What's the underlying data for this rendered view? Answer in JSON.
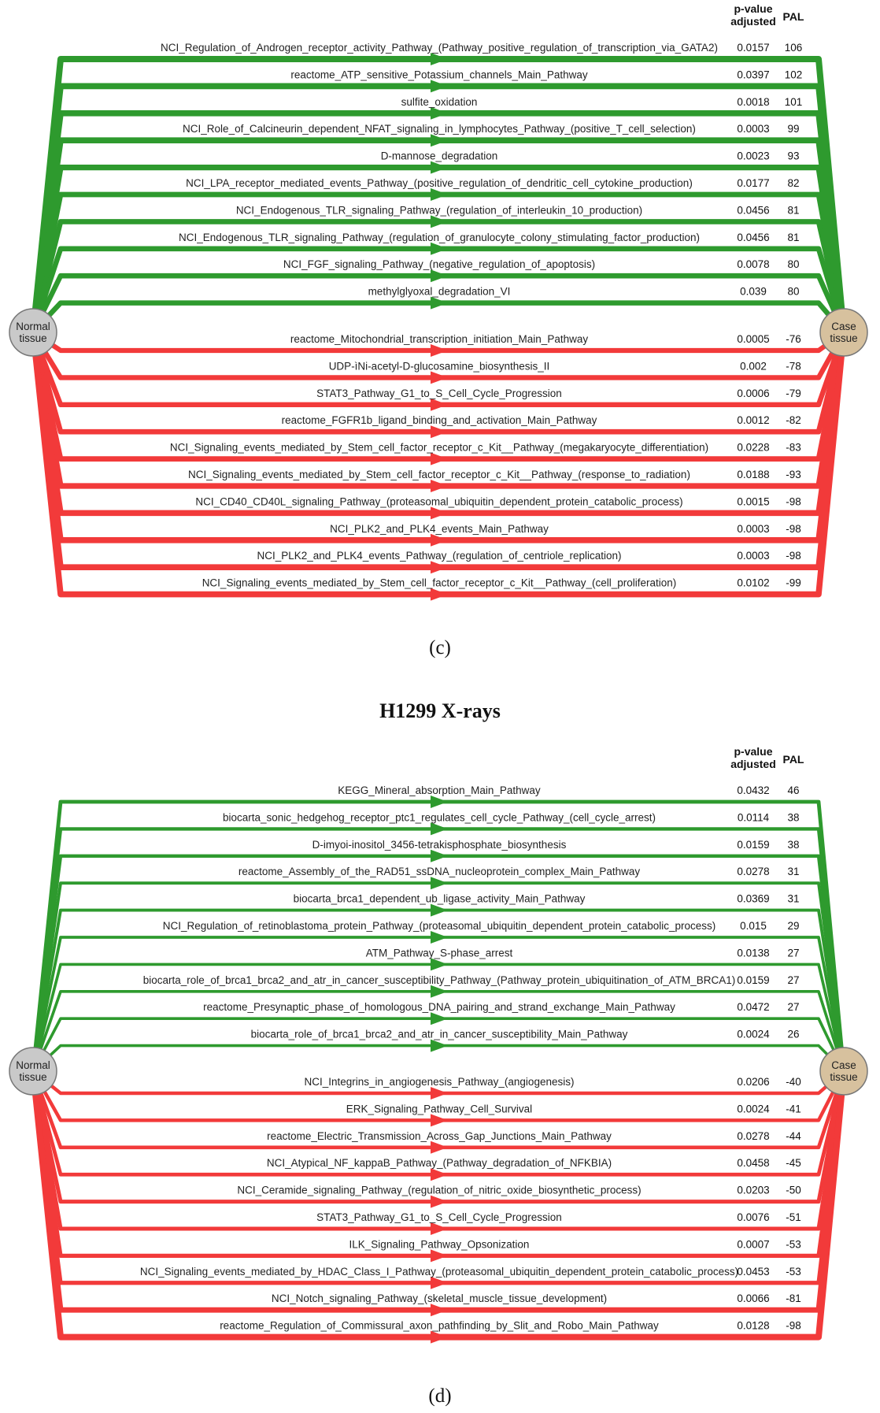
{
  "colors": {
    "up": "#2e9a2e",
    "down": "#f23a3a",
    "normal_node": "#c9c9c9",
    "case_node": "#d7c19e"
  },
  "title_d": "H1299 X-rays",
  "panels": [
    {
      "caption": "(c)",
      "header_pvalue_1": "p-value",
      "header_pvalue_2": "adjusted",
      "header_pal": "PAL",
      "node_left_1": "Normal",
      "node_left_2": "tissue",
      "node_right_1": "Case",
      "node_right_2": "tissue",
      "up_rows": [
        {
          "label": "NCI_Regulation_of_Androgen_receptor_activity_Pathway_(Pathway_positive_regulation_of_transcription_via_GATA2)",
          "pvalue": "0.0157",
          "pal": "106"
        },
        {
          "label": "reactome_ATP_sensitive_Potassium_channels_Main_Pathway",
          "pvalue": "0.0397",
          "pal": "102"
        },
        {
          "label": "sulfite_oxidation",
          "pvalue": "0.0018",
          "pal": "101"
        },
        {
          "label": "NCI_Role_of_Calcineurin_dependent_NFAT_signaling_in_lymphocytes_Pathway_(positive_T_cell_selection)",
          "pvalue": "0.0003",
          "pal": "99"
        },
        {
          "label": "D-mannose_degradation",
          "pvalue": "0.0023",
          "pal": "93"
        },
        {
          "label": "NCI_LPA_receptor_mediated_events_Pathway_(positive_regulation_of_dendritic_cell_cytokine_production)",
          "pvalue": "0.0177",
          "pal": "82"
        },
        {
          "label": "NCI_Endogenous_TLR_signaling_Pathway_(regulation_of_interleukin_10_production)",
          "pvalue": "0.0456",
          "pal": "81"
        },
        {
          "label": "NCI_Endogenous_TLR_signaling_Pathway_(regulation_of_granulocyte_colony_stimulating_factor_production)",
          "pvalue": "0.0456",
          "pal": "81"
        },
        {
          "label": "NCI_FGF_signaling_Pathway_(negative_regulation_of_apoptosis)",
          "pvalue": "0.0078",
          "pal": "80"
        },
        {
          "label": "methylglyoxal_degradation_VI",
          "pvalue": "0.039",
          "pal": "80"
        }
      ],
      "down_rows": [
        {
          "label": "reactome_Mitochondrial_transcription_initiation_Main_Pathway",
          "pvalue": "0.0005",
          "pal": "-76"
        },
        {
          "label": "UDP-ìNi-acetyl-D-glucosamine_biosynthesis_II",
          "pvalue": "0.002",
          "pal": "-78"
        },
        {
          "label": "STAT3_Pathway_G1_to_S_Cell_Cycle_Progression",
          "pvalue": "0.0006",
          "pal": "-79"
        },
        {
          "label": "reactome_FGFR1b_ligand_binding_and_activation_Main_Pathway",
          "pvalue": "0.0012",
          "pal": "-82"
        },
        {
          "label": "NCI_Signaling_events_mediated_by_Stem_cell_factor_receptor_c_Kit__Pathway_(megakaryocyte_differentiation)",
          "pvalue": "0.0228",
          "pal": "-83"
        },
        {
          "label": "NCI_Signaling_events_mediated_by_Stem_cell_factor_receptor_c_Kit__Pathway_(response_to_radiation)",
          "pvalue": "0.0188",
          "pal": "-93"
        },
        {
          "label": "NCI_CD40_CD40L_signaling_Pathway_(proteasomal_ubiquitin_dependent_protein_catabolic_process)",
          "pvalue": "0.0015",
          "pal": "-98"
        },
        {
          "label": "NCI_PLK2_and_PLK4_events_Main_Pathway",
          "pvalue": "0.0003",
          "pal": "-98"
        },
        {
          "label": "NCI_PLK2_and_PLK4_events_Pathway_(regulation_of_centriole_replication)",
          "pvalue": "0.0003",
          "pal": "-98"
        },
        {
          "label": "NCI_Signaling_events_mediated_by_Stem_cell_factor_receptor_c_Kit__Pathway_(cell_proliferation)",
          "pvalue": "0.0102",
          "pal": "-99"
        }
      ]
    },
    {
      "caption": "(d)",
      "header_pvalue_1": "p-value",
      "header_pvalue_2": "adjusted",
      "header_pal": "PAL",
      "node_left_1": "Normal",
      "node_left_2": "tissue",
      "node_right_1": "Case",
      "node_right_2": "tissue",
      "up_rows": [
        {
          "label": "KEGG_Mineral_absorption_Main_Pathway",
          "pvalue": "0.0432",
          "pal": "46"
        },
        {
          "label": "biocarta_sonic_hedgehog_receptor_ptc1_regulates_cell_cycle_Pathway_(cell_cycle_arrest)",
          "pvalue": "0.0114",
          "pal": "38"
        },
        {
          "label": "D-imyoi-inositol_3456-tetrakisphosphate_biosynthesis",
          "pvalue": "0.0159",
          "pal": "38"
        },
        {
          "label": "reactome_Assembly_of_the_RAD51_ssDNA_nucleoprotein_complex_Main_Pathway",
          "pvalue": "0.0278",
          "pal": "31"
        },
        {
          "label": "biocarta_brca1_dependent_ub_ligase_activity_Main_Pathway",
          "pvalue": "0.0369",
          "pal": "31"
        },
        {
          "label": "NCI_Regulation_of_retinoblastoma_protein_Pathway_(proteasomal_ubiquitin_dependent_protein_catabolic_process)",
          "pvalue": "0.015",
          "pal": "29"
        },
        {
          "label": "ATM_Pathway_S-phase_arrest",
          "pvalue": "0.0138",
          "pal": "27"
        },
        {
          "label": "biocarta_role_of_brca1_brca2_and_atr_in_cancer_susceptibility_Pathway_(Pathway_protein_ubiquitination_of_ATM_BRCA1)",
          "pvalue": "0.0159",
          "pal": "27"
        },
        {
          "label": "reactome_Presynaptic_phase_of_homologous_DNA_pairing_and_strand_exchange_Main_Pathway",
          "pvalue": "0.0472",
          "pal": "27"
        },
        {
          "label": "biocarta_role_of_brca1_brca2_and_atr_in_cancer_susceptibility_Main_Pathway",
          "pvalue": "0.0024",
          "pal": "26"
        }
      ],
      "down_rows": [
        {
          "label": "NCI_Integrins_in_angiogenesis_Pathway_(angiogenesis)",
          "pvalue": "0.0206",
          "pal": "-40"
        },
        {
          "label": "ERK_Signaling_Pathway_Cell_Survival",
          "pvalue": "0.0024",
          "pal": "-41"
        },
        {
          "label": "reactome_Electric_Transmission_Across_Gap_Junctions_Main_Pathway",
          "pvalue": "0.0278",
          "pal": "-44"
        },
        {
          "label": "NCI_Atypical_NF_kappaB_Pathway_(Pathway_degradation_of_NFKBIA)",
          "pvalue": "0.0458",
          "pal": "-45"
        },
        {
          "label": "NCI_Ceramide_signaling_Pathway_(regulation_of_nitric_oxide_biosynthetic_process)",
          "pvalue": "0.0203",
          "pal": "-50"
        },
        {
          "label": "STAT3_Pathway_G1_to_S_Cell_Cycle_Progression",
          "pvalue": "0.0076",
          "pal": "-51"
        },
        {
          "label": "ILK_Signaling_Pathway_Opsonization",
          "pvalue": "0.0007",
          "pal": "-53"
        },
        {
          "label": "NCI_Signaling_events_mediated_by_HDAC_Class_I_Pathway_(proteasomal_ubiquitin_dependent_protein_catabolic_process)",
          "pvalue": "0.0453",
          "pal": "-53"
        },
        {
          "label": "NCI_Notch_signaling_Pathway_(skeletal_muscle_tissue_development)",
          "pvalue": "0.0066",
          "pal": "-81"
        },
        {
          "label": "reactome_Regulation_of_Commissural_axon_pathfinding_by_Slit_and_Robo_Main_Pathway",
          "pvalue": "0.0128",
          "pal": "-98"
        }
      ]
    }
  ]
}
